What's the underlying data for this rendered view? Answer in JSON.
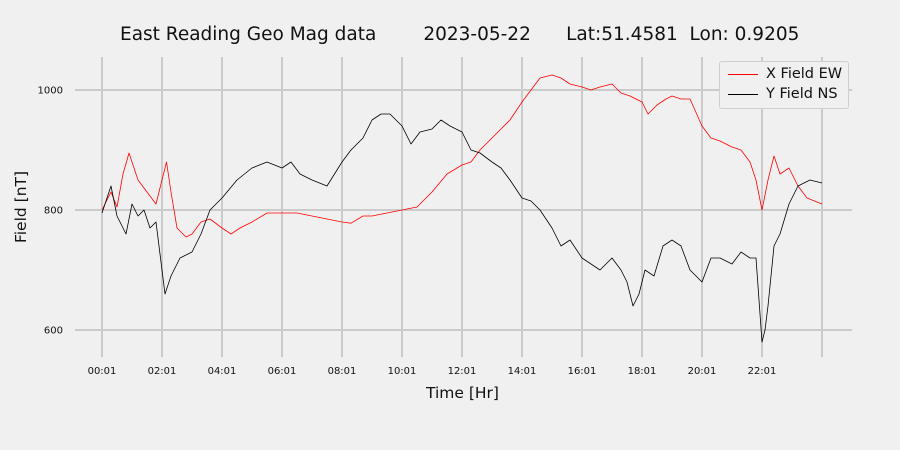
{
  "chart_data": {
    "type": "line",
    "title": "East Reading Geo Mag data        2023-05-22      Lat:51.4581  Lon: 0.9205",
    "xlabel": "Time  [Hr]",
    "ylabel": "Field  [nT]",
    "x_ticks": [
      "00:01",
      "02:01",
      "04:01",
      "06:01",
      "08:01",
      "10:01",
      "12:01",
      "14:01",
      "16:01",
      "18:01",
      "20:01",
      "22:01"
    ],
    "y_ticks": [
      600,
      800,
      1000
    ],
    "xlim": [
      -0.9,
      25.0
    ],
    "ylim": [
      555,
      1055
    ],
    "grid": true,
    "legend_position": "top-right",
    "series": [
      {
        "name": "X Field EW",
        "color": "#ff0000",
        "x": [
          0.0,
          0.3,
          0.5,
          0.7,
          0.9,
          1.0,
          1.2,
          1.5,
          1.8,
          2.0,
          2.15,
          2.3,
          2.5,
          2.8,
          3.0,
          3.3,
          3.6,
          4.0,
          4.3,
          4.6,
          5.0,
          5.5,
          6.0,
          6.5,
          7.0,
          7.5,
          8.0,
          8.3,
          8.7,
          9.0,
          9.5,
          10.0,
          10.5,
          11.0,
          11.5,
          12.0,
          12.3,
          12.6,
          13.0,
          13.3,
          13.6,
          14.0,
          14.3,
          14.6,
          15.0,
          15.3,
          15.6,
          16.0,
          16.3,
          16.6,
          17.0,
          17.3,
          17.6,
          18.0,
          18.2,
          18.5,
          18.8,
          19.0,
          19.3,
          19.6,
          20.0,
          20.3,
          20.6,
          21.0,
          21.3,
          21.6,
          21.8,
          22.0,
          22.2,
          22.4,
          22.6,
          22.9,
          23.2,
          23.5,
          24.0
        ],
        "y": [
          800,
          830,
          805,
          860,
          895,
          880,
          850,
          830,
          810,
          850,
          880,
          830,
          770,
          755,
          760,
          780,
          785,
          770,
          760,
          770,
          780,
          795,
          795,
          795,
          790,
          785,
          780,
          778,
          790,
          790,
          795,
          800,
          805,
          830,
          860,
          875,
          880,
          900,
          920,
          935,
          950,
          980,
          1000,
          1020,
          1025,
          1020,
          1010,
          1005,
          1000,
          1005,
          1010,
          995,
          990,
          980,
          960,
          975,
          985,
          990,
          985,
          985,
          940,
          920,
          915,
          905,
          900,
          880,
          850,
          800,
          850,
          890,
          860,
          870,
          840,
          820,
          810
        ]
      },
      {
        "name": "Y Field NS",
        "color": "#000000",
        "x": [
          0.0,
          0.3,
          0.5,
          0.8,
          1.0,
          1.2,
          1.4,
          1.6,
          1.8,
          2.0,
          2.1,
          2.3,
          2.6,
          3.0,
          3.3,
          3.6,
          4.0,
          4.5,
          5.0,
          5.5,
          6.0,
          6.3,
          6.6,
          7.0,
          7.5,
          8.0,
          8.3,
          8.7,
          9.0,
          9.3,
          9.6,
          10.0,
          10.3,
          10.6,
          11.0,
          11.3,
          11.6,
          12.0,
          12.3,
          12.6,
          13.0,
          13.3,
          13.6,
          14.0,
          14.3,
          14.6,
          15.0,
          15.3,
          15.6,
          16.0,
          16.3,
          16.6,
          17.0,
          17.3,
          17.5,
          17.7,
          17.9,
          18.1,
          18.4,
          18.7,
          19.0,
          19.3,
          19.6,
          20.0,
          20.3,
          20.6,
          21.0,
          21.3,
          21.6,
          21.8,
          22.0,
          22.1,
          22.2,
          22.4,
          22.6,
          22.9,
          23.2,
          23.6,
          24.0
        ],
        "y": [
          795,
          840,
          790,
          760,
          810,
          790,
          800,
          770,
          780,
          700,
          660,
          690,
          720,
          730,
          760,
          800,
          820,
          850,
          870,
          880,
          870,
          880,
          860,
          850,
          840,
          880,
          900,
          920,
          950,
          960,
          960,
          940,
          910,
          930,
          935,
          950,
          940,
          930,
          900,
          895,
          880,
          870,
          850,
          820,
          815,
          800,
          770,
          740,
          750,
          720,
          710,
          700,
          720,
          700,
          680,
          640,
          660,
          700,
          690,
          740,
          750,
          740,
          700,
          680,
          720,
          720,
          710,
          730,
          720,
          720,
          580,
          600,
          640,
          740,
          760,
          810,
          840,
          850,
          845
        ]
      }
    ]
  }
}
